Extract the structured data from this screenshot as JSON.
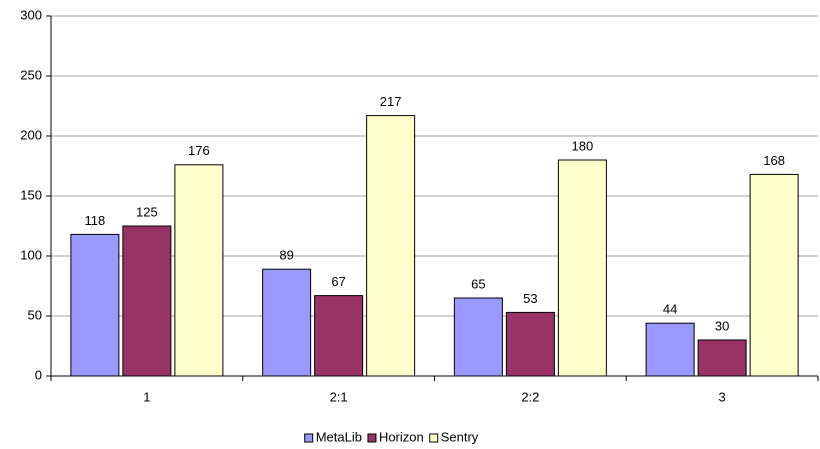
{
  "chart_data": {
    "type": "bar",
    "categories": [
      "1",
      "2:1",
      "2:2",
      "3"
    ],
    "series": [
      {
        "name": "MetaLib",
        "color": "#9999ff",
        "values": [
          118,
          89,
          65,
          44
        ]
      },
      {
        "name": "Horizon",
        "color": "#993366",
        "values": [
          125,
          67,
          53,
          30
        ]
      },
      {
        "name": "Sentry",
        "color": "#ffffcc",
        "values": [
          176,
          217,
          180,
          168
        ]
      }
    ],
    "ylim": [
      0,
      300
    ],
    "yticks": [
      0,
      50,
      100,
      150,
      200,
      250,
      300
    ],
    "grid": true,
    "legend": "bottom"
  }
}
